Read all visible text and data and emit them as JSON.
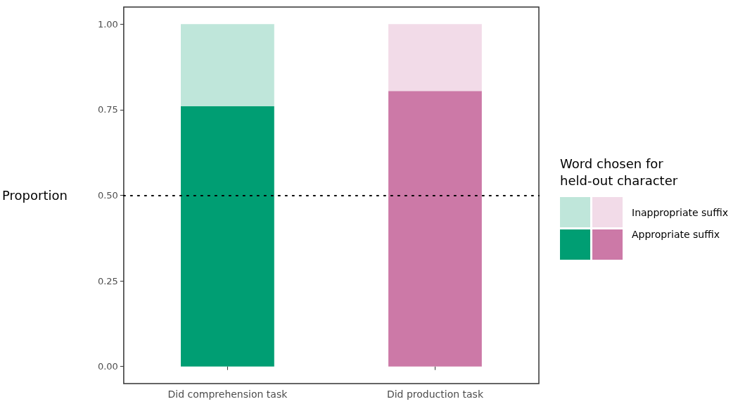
{
  "chart_data": {
    "type": "bar",
    "stacked": true,
    "ylabel": "Proportion",
    "legend_title": "Word chosen for\nheld-out character",
    "legend": "right",
    "categories": [
      "Did comprehension task",
      "Did production task"
    ],
    "series": [
      {
        "name": "Appropriate suffix",
        "colors": [
          "#009e73",
          "#cc79a7"
        ],
        "values": [
          0.76,
          0.805
        ]
      },
      {
        "name": "Inappropriate suffix",
        "colors": [
          "#bfe6da",
          "#f2dbe8"
        ],
        "values": [
          0.24,
          0.195
        ]
      }
    ],
    "ylim": [
      -0.05,
      1.05
    ],
    "yticks": [
      {
        "value": 0,
        "label": "0.00"
      },
      {
        "value": 0.25,
        "label": "0.25"
      },
      {
        "value": 0.5,
        "label": "0.50"
      },
      {
        "value": 0.75,
        "label": "0.75"
      },
      {
        "value": 1,
        "label": "1.00"
      }
    ],
    "grid": false,
    "ref_lines": [
      {
        "axis": "y",
        "value": 0.5,
        "line_style": "dotted",
        "color": "#000000"
      }
    ]
  }
}
